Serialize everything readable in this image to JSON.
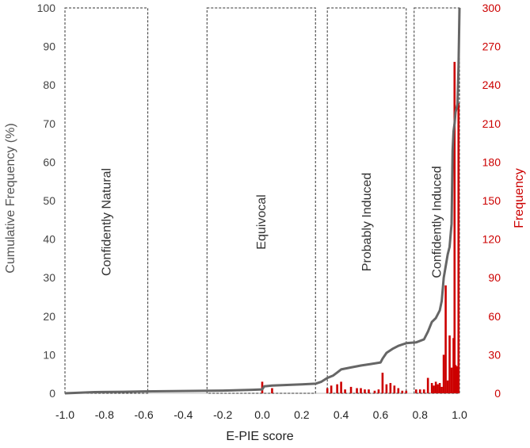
{
  "chart_data": {
    "type": "bar+line",
    "xlabel": "E-PIE score",
    "ylabel_left": "Cumulative Frequency (%)",
    "ylabel_right": "Frequency",
    "xlim": [
      -1.0,
      1.0
    ],
    "ylim_left": [
      0,
      100
    ],
    "ylim_right": [
      0,
      300
    ],
    "x_ticks": [
      "-1.0",
      "-0.8",
      "-0.6",
      "-0.4",
      "-0.2",
      "0.0",
      "0.2",
      "0.4",
      "0.6",
      "0.8",
      "1.0"
    ],
    "y_left_ticks": [
      "0",
      "10",
      "20",
      "30",
      "40",
      "50",
      "60",
      "70",
      "80",
      "90",
      "100"
    ],
    "y_right_ticks": [
      "0",
      "30",
      "60",
      "90",
      "120",
      "150",
      "180",
      "210",
      "240",
      "270",
      "300"
    ],
    "colors": {
      "line": "#666666",
      "bars": "#cc0000",
      "left_axis_text": "#555555",
      "right_axis_text": "#cc0000"
    },
    "regions": [
      {
        "label": "Confidently Natural",
        "x_start": -1.0,
        "x_end": -0.58
      },
      {
        "label": "Equivocal",
        "x_start": -0.28,
        "x_end": 0.27
      },
      {
        "label": "Probably Induced",
        "x_start": 0.33,
        "x_end": 0.73
      },
      {
        "label": "Confidently Induced",
        "x_start": 0.77,
        "x_end": 1.0
      }
    ],
    "series": [
      {
        "type": "line",
        "axis": "left",
        "points": [
          [
            -1.0,
            0.0
          ],
          [
            -0.95,
            0.1
          ],
          [
            -0.85,
            0.3
          ],
          [
            -0.7,
            0.4
          ],
          [
            -0.6,
            0.5
          ],
          [
            -0.4,
            0.6
          ],
          [
            -0.2,
            0.7
          ],
          [
            -0.05,
            0.9
          ],
          [
            0.0,
            1.0
          ],
          [
            0.01,
            1.8
          ],
          [
            0.05,
            2.0
          ],
          [
            0.1,
            2.1
          ],
          [
            0.2,
            2.3
          ],
          [
            0.27,
            2.5
          ],
          [
            0.3,
            3.0
          ],
          [
            0.33,
            4.0
          ],
          [
            0.36,
            4.6
          ],
          [
            0.38,
            5.4
          ],
          [
            0.4,
            6.2
          ],
          [
            0.45,
            6.7
          ],
          [
            0.5,
            7.2
          ],
          [
            0.55,
            7.6
          ],
          [
            0.6,
            8.0
          ],
          [
            0.61,
            9.0
          ],
          [
            0.63,
            10.5
          ],
          [
            0.66,
            11.5
          ],
          [
            0.69,
            12.3
          ],
          [
            0.73,
            13.0
          ],
          [
            0.78,
            13.2
          ],
          [
            0.82,
            14.0
          ],
          [
            0.84,
            16.0
          ],
          [
            0.86,
            18.5
          ],
          [
            0.88,
            19.5
          ],
          [
            0.9,
            21.5
          ],
          [
            0.91,
            24.0
          ],
          [
            0.92,
            30.0
          ],
          [
            0.93,
            33.0
          ],
          [
            0.94,
            36.0
          ],
          [
            0.95,
            38.0
          ],
          [
            0.96,
            44.0
          ],
          [
            0.965,
            63.0
          ],
          [
            0.97,
            68.0
          ],
          [
            0.975,
            70.0
          ],
          [
            0.98,
            73.0
          ],
          [
            0.985,
            74.0
          ],
          [
            0.99,
            75.0
          ],
          [
            0.995,
            85.0
          ],
          [
            1.0,
            100.0
          ]
        ]
      },
      {
        "type": "bar",
        "axis": "right",
        "points": [
          [
            0.0,
            9
          ],
          [
            0.05,
            4
          ],
          [
            0.33,
            4
          ],
          [
            0.35,
            6
          ],
          [
            0.38,
            7
          ],
          [
            0.4,
            9
          ],
          [
            0.42,
            3
          ],
          [
            0.45,
            5
          ],
          [
            0.48,
            4
          ],
          [
            0.5,
            4
          ],
          [
            0.52,
            3
          ],
          [
            0.54,
            3
          ],
          [
            0.57,
            2
          ],
          [
            0.59,
            3
          ],
          [
            0.61,
            16
          ],
          [
            0.63,
            7
          ],
          [
            0.65,
            8
          ],
          [
            0.67,
            6
          ],
          [
            0.69,
            4
          ],
          [
            0.71,
            2
          ],
          [
            0.73,
            2
          ],
          [
            0.78,
            3
          ],
          [
            0.8,
            3
          ],
          [
            0.82,
            3
          ],
          [
            0.84,
            12
          ],
          [
            0.86,
            8
          ],
          [
            0.87,
            6
          ],
          [
            0.88,
            9
          ],
          [
            0.89,
            7
          ],
          [
            0.9,
            8
          ],
          [
            0.91,
            5
          ],
          [
            0.92,
            30
          ],
          [
            0.93,
            84
          ],
          [
            0.94,
            10
          ],
          [
            0.95,
            45
          ],
          [
            0.96,
            20
          ],
          [
            0.97,
            43
          ],
          [
            0.975,
            258
          ],
          [
            0.98,
            22
          ],
          [
            0.985,
            21
          ],
          [
            0.99,
            8
          ],
          [
            0.995,
            226
          ]
        ]
      }
    ]
  }
}
